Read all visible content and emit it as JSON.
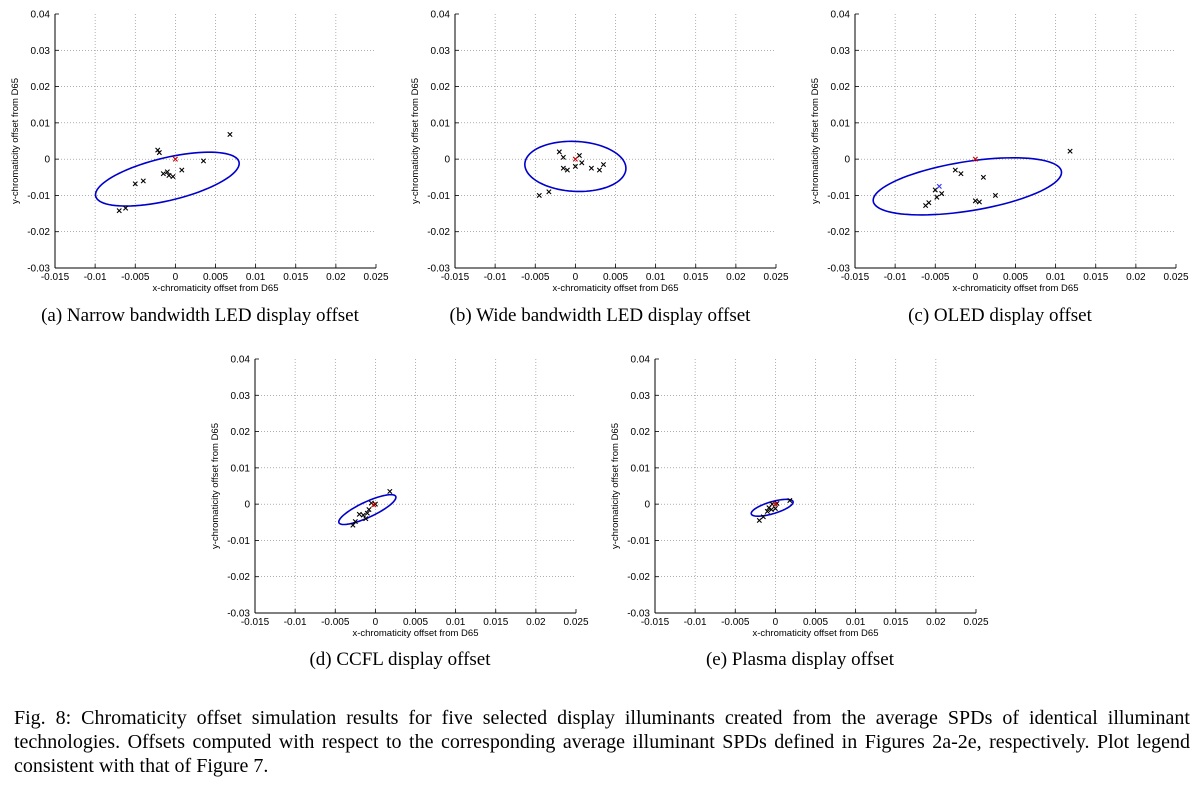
{
  "figure_caption": "Fig. 8: Chromaticity offset simulation results for five selected display illuminants created from the average SPDs of identical illuminant technologies. Offsets computed with respect to the corresponding average illuminant SPDs defined in Figures 2a-2e, respectively. Plot legend consistent with that of Figure 7.",
  "colors": {
    "ellipse": "#0000cc",
    "point": "#000000",
    "reference": "#cc0000",
    "highlight": "#3333ff",
    "grid": "#808080"
  },
  "chart_data": [
    {
      "type": "scatter",
      "caption": "(a) Narrow bandwidth LED display offset",
      "xlabel": "x-chromaticity offset from D65",
      "ylabel": "y-chromaticity offset from D65",
      "xlim": [
        -0.015,
        0.025
      ],
      "ylim": [
        -0.03,
        0.04
      ],
      "xticks": [
        "-0.015",
        "-0.01",
        "-0.005",
        "0",
        "0.005",
        "0.01",
        "0.015",
        "0.02",
        "0.025"
      ],
      "yticks": [
        "-0.03",
        "-0.02",
        "-0.01",
        "0",
        "0.01",
        "0.02",
        "0.03",
        "0.04"
      ],
      "grid": true,
      "ellipse": {
        "center": [
          -0.001,
          -0.0055
        ],
        "semi_axes": [
          0.0104,
          0.0052
        ],
        "angle_deg": 36
      },
      "points": [
        [
          -0.007,
          -0.0142
        ],
        [
          -0.0062,
          -0.0135
        ],
        [
          -0.005,
          -0.0068
        ],
        [
          -0.004,
          -0.006
        ],
        [
          -0.0022,
          0.0025
        ],
        [
          -0.002,
          0.0018
        ],
        [
          -0.0015,
          -0.004
        ],
        [
          -0.001,
          -0.0035
        ],
        [
          -0.0008,
          -0.0045
        ],
        [
          -0.0003,
          -0.0048
        ],
        [
          0.0008,
          -0.003
        ],
        [
          0.0035,
          -0.0005
        ],
        [
          0.0068,
          0.0068
        ]
      ],
      "reference_points": [
        [
          0.0,
          0.0
        ]
      ],
      "highlight_points": []
    },
    {
      "type": "scatter",
      "caption": "(b) Wide bandwidth LED display offset",
      "xlabel": "x-chromaticity offset from D65",
      "ylabel": "y-chromaticity offset from D65",
      "xlim": [
        -0.015,
        0.025
      ],
      "ylim": [
        -0.03,
        0.04
      ],
      "xticks": [
        "-0.015",
        "-0.01",
        "-0.005",
        "0",
        "0.005",
        "0.01",
        "0.015",
        "0.02",
        "0.025"
      ],
      "yticks": [
        "-0.03",
        "-0.02",
        "-0.01",
        "0",
        "0.01",
        "0.02",
        "0.03",
        "0.04"
      ],
      "grid": true,
      "ellipse": {
        "center": [
          0.0,
          -0.002
        ],
        "semi_axes": [
          0.0062,
          0.007
        ],
        "angle_deg": 20
      },
      "points": [
        [
          -0.0045,
          -0.01
        ],
        [
          -0.0033,
          -0.009
        ],
        [
          -0.002,
          0.002
        ],
        [
          -0.0015,
          0.0005
        ],
        [
          -0.0015,
          -0.0025
        ],
        [
          -0.001,
          -0.003
        ],
        [
          0.0,
          -0.002
        ],
        [
          0.0005,
          0.001
        ],
        [
          0.0008,
          -0.001
        ],
        [
          0.002,
          -0.0025
        ],
        [
          0.003,
          -0.003
        ],
        [
          0.0035,
          -0.0015
        ]
      ],
      "reference_points": [
        [
          0.0,
          0.0
        ]
      ],
      "highlight_points": []
    },
    {
      "type": "scatter",
      "caption": "(c) OLED display offset",
      "xlabel": "x-chromaticity offset from D65",
      "ylabel": "y-chromaticity offset from D65",
      "xlim": [
        -0.015,
        0.025
      ],
      "ylim": [
        -0.03,
        0.04
      ],
      "xticks": [
        "-0.015",
        "-0.01",
        "-0.005",
        "0",
        "0.005",
        "0.01",
        "0.015",
        "0.02",
        "0.025"
      ],
      "yticks": [
        "-0.03",
        "-0.02",
        "-0.01",
        "0",
        "0.01",
        "0.02",
        "0.03",
        "0.04"
      ],
      "grid": true,
      "ellipse": {
        "center": [
          -0.001,
          -0.0075
        ],
        "semi_axes": [
          0.0126,
          0.0064
        ],
        "angle_deg": 25
      },
      "points": [
        [
          -0.0062,
          -0.0128
        ],
        [
          -0.0058,
          -0.012
        ],
        [
          -0.005,
          -0.0085
        ],
        [
          -0.0048,
          -0.0105
        ],
        [
          -0.0042,
          -0.0095
        ],
        [
          -0.0025,
          -0.003
        ],
        [
          -0.0018,
          -0.004
        ],
        [
          0.0,
          -0.0115
        ],
        [
          0.0005,
          -0.0118
        ],
        [
          0.001,
          -0.005
        ],
        [
          0.0025,
          -0.01
        ],
        [
          0.0118,
          0.0022
        ]
      ],
      "reference_points": [
        [
          0.0,
          0.0
        ]
      ],
      "highlight_points": [
        [
          -0.0045,
          -0.0075
        ]
      ]
    },
    {
      "type": "scatter",
      "caption": "(d) CCFL display offset",
      "xlabel": "x-chromaticity offset from D65",
      "ylabel": "y-chromaticity offset from D65",
      "xlim": [
        -0.015,
        0.025
      ],
      "ylim": [
        -0.03,
        0.04
      ],
      "xticks": [
        "-0.015",
        "-0.01",
        "-0.005",
        "0",
        "0.005",
        "0.01",
        "0.015",
        "0.02",
        "0.025"
      ],
      "yticks": [
        "-0.03",
        "-0.02",
        "-0.01",
        "0",
        "0.01",
        "0.02",
        "0.03",
        "0.04"
      ],
      "grid": true,
      "ellipse": {
        "center": [
          -0.001,
          -0.0015
        ],
        "semi_axes": [
          0.0052,
          0.0016
        ],
        "angle_deg": 50
      },
      "points": [
        [
          -0.0028,
          -0.0058
        ],
        [
          -0.0025,
          -0.0048
        ],
        [
          -0.002,
          -0.0028
        ],
        [
          -0.0015,
          -0.003
        ],
        [
          -0.0012,
          -0.004
        ],
        [
          -0.001,
          -0.0025
        ],
        [
          -0.0008,
          -0.0015
        ],
        [
          -0.0005,
          0.0003
        ],
        [
          0.0,
          0.0
        ],
        [
          0.0018,
          0.0035
        ]
      ],
      "reference_points": [
        [
          -0.0002,
          -0.0002
        ]
      ],
      "highlight_points": []
    },
    {
      "type": "scatter",
      "caption": "(e) Plasma display offset",
      "xlabel": "x-chromaticity offset from D65",
      "ylabel": "y-chromaticity offset from D65",
      "xlim": [
        -0.015,
        0.025
      ],
      "ylim": [
        -0.03,
        0.04
      ],
      "xticks": [
        "-0.015",
        "-0.01",
        "-0.005",
        "0",
        "0.005",
        "0.01",
        "0.015",
        "0.02",
        "0.025"
      ],
      "yticks": [
        "-0.03",
        "-0.02",
        "-0.01",
        "0",
        "0.01",
        "0.02",
        "0.03",
        "0.04"
      ],
      "grid": true,
      "ellipse": {
        "center": [
          -0.0004,
          -0.001
        ],
        "semi_axes": [
          0.0032,
          0.0014
        ],
        "angle_deg": 40
      },
      "points": [
        [
          -0.002,
          -0.0045
        ],
        [
          -0.0015,
          -0.0035
        ],
        [
          -0.001,
          -0.002
        ],
        [
          -0.0008,
          -0.001
        ],
        [
          -0.0005,
          -0.0015
        ],
        [
          -0.0004,
          0.0
        ],
        [
          0.0,
          -0.0012
        ],
        [
          0.0002,
          0.0002
        ],
        [
          0.0018,
          0.001
        ]
      ],
      "reference_points": [
        [
          0.0,
          0.0
        ]
      ],
      "highlight_points": []
    }
  ]
}
